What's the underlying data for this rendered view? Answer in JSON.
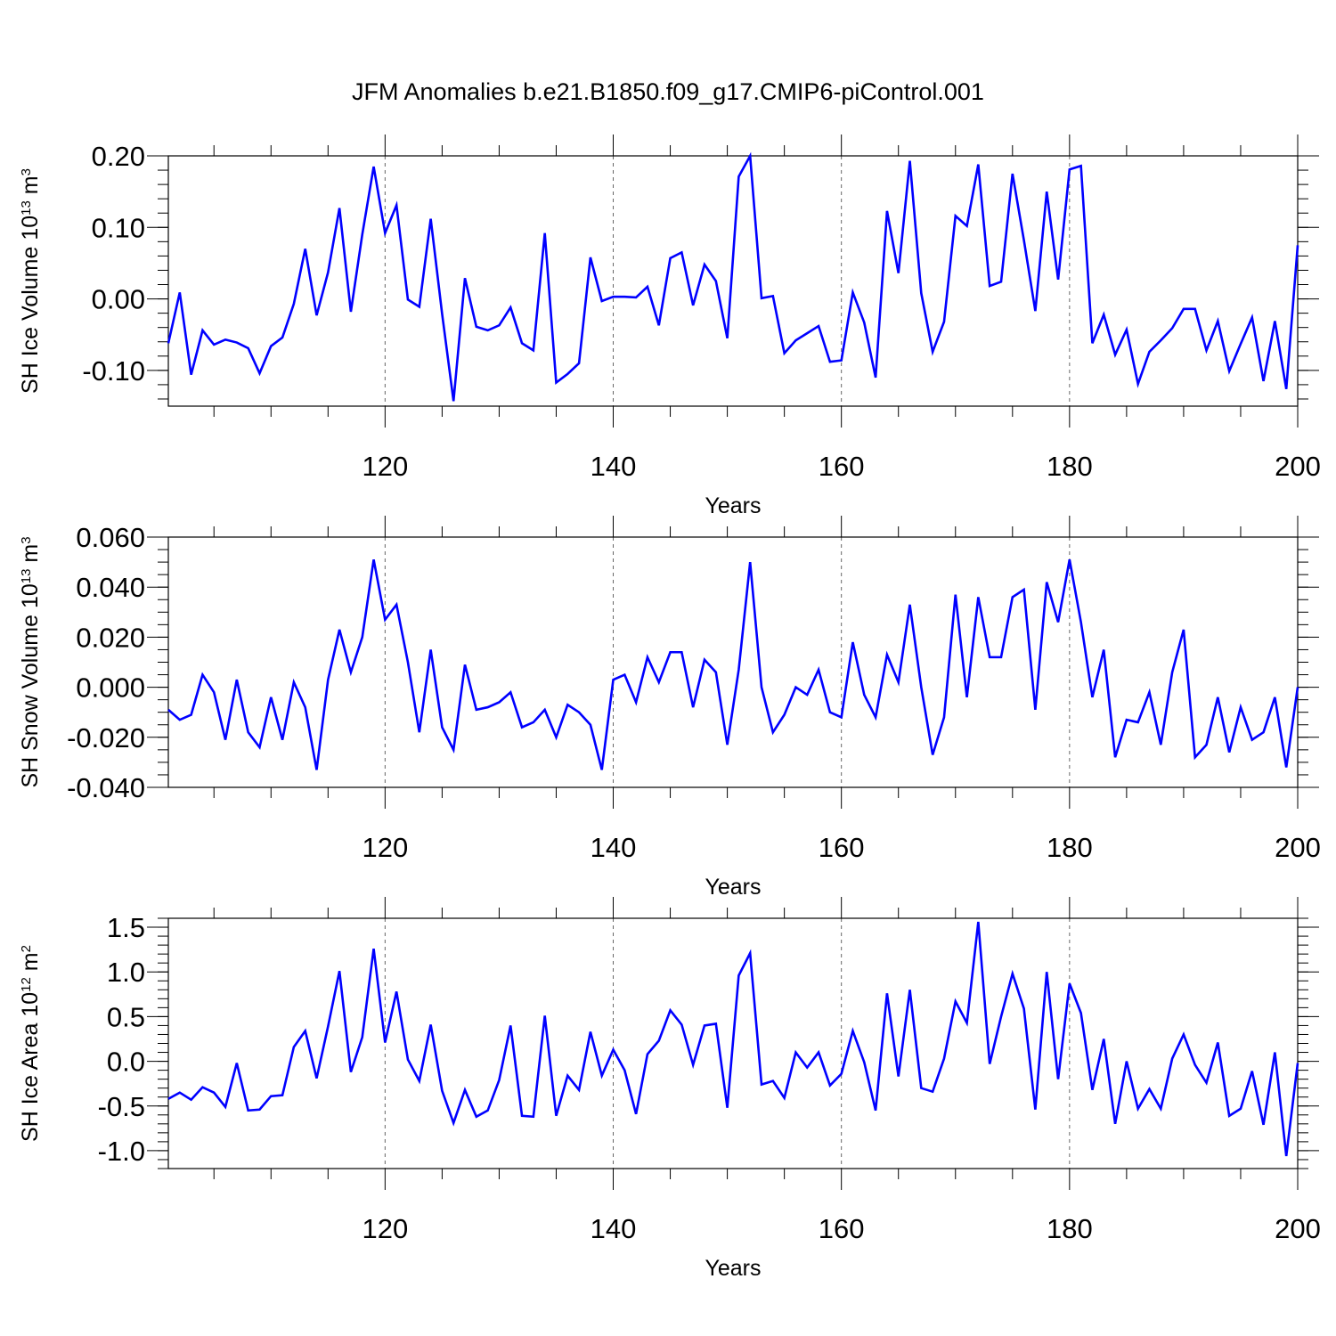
{
  "chart_data": [
    {
      "type": "line",
      "title": "JFM Anomalies b.e21.B1850.f09_g17.CMIP6-piControl.001",
      "ylabel": {
        "base": "SH Ice Volume 10",
        "exp": "13",
        "unit": " m",
        "unit_exp": "3"
      },
      "xlabel": "Years",
      "xlim": [
        101,
        200
      ],
      "ylim": [
        -0.15,
        0.2
      ],
      "xticks": [
        120,
        140,
        160,
        180,
        200
      ],
      "xtick_labels": [
        "120",
        "140",
        "160",
        "180",
        "200"
      ],
      "yticks": [
        0.2,
        0.1,
        0.0,
        -0.1
      ],
      "ytick_labels": [
        "0.20",
        "0.10",
        "0.00",
        "-0.10"
      ],
      "ymin_step": 0.02,
      "color": "#0000ff",
      "x": [
        101,
        102,
        103,
        104,
        105,
        106,
        107,
        108,
        109,
        110,
        111,
        112,
        113,
        114,
        115,
        116,
        117,
        118,
        119,
        120,
        121,
        122,
        123,
        124,
        125,
        126,
        127,
        128,
        129,
        130,
        131,
        132,
        133,
        134,
        135,
        136,
        137,
        138,
        139,
        140,
        141,
        142,
        143,
        144,
        145,
        146,
        147,
        148,
        149,
        150,
        151,
        152,
        153,
        154,
        155,
        156,
        157,
        158,
        159,
        160,
        161,
        162,
        163,
        164,
        165,
        166,
        167,
        168,
        169,
        170,
        171,
        172,
        173,
        174,
        175,
        176,
        177,
        178,
        179,
        180,
        181,
        182,
        183,
        184,
        185,
        186,
        187,
        188,
        189,
        190,
        191,
        192,
        193,
        194,
        195,
        196,
        197,
        198,
        199,
        200
      ],
      "values": [
        -0.062,
        0.009,
        -0.106,
        -0.044,
        -0.064,
        -0.057,
        -0.061,
        -0.069,
        -0.104,
        -0.066,
        -0.054,
        -0.007,
        0.07,
        -0.023,
        0.037,
        0.127,
        -0.018,
        0.09,
        0.185,
        0.092,
        0.131,
        -0.001,
        -0.011,
        0.112,
        -0.021,
        -0.143,
        0.029,
        -0.039,
        -0.044,
        -0.037,
        -0.012,
        -0.062,
        -0.072,
        0.092,
        -0.117,
        -0.105,
        -0.09,
        0.058,
        -0.003,
        0.003,
        0.003,
        0.002,
        0.017,
        -0.037,
        0.057,
        0.065,
        -0.009,
        0.048,
        0.025,
        -0.055,
        0.171,
        0.2,
        0.001,
        0.004,
        -0.076,
        -0.058,
        -0.048,
        -0.038,
        -0.088,
        -0.086,
        0.009,
        -0.033,
        -0.11,
        0.123,
        0.036,
        0.193,
        0.008,
        -0.074,
        -0.032,
        0.116,
        0.102,
        0.188,
        0.018,
        0.024,
        0.175,
        0.082,
        -0.017,
        0.15,
        0.027,
        0.181,
        0.186,
        -0.062,
        -0.022,
        -0.078,
        -0.043,
        -0.119,
        -0.074,
        -0.058,
        -0.041,
        -0.014,
        -0.014,
        -0.072,
        -0.031,
        -0.101,
        -0.063,
        -0.026,
        -0.115,
        -0.031,
        -0.126,
        0.075
      ]
    },
    {
      "type": "line",
      "ylabel": {
        "base": "SH Snow Volume 10",
        "exp": "13",
        "unit": " m",
        "unit_exp": "3"
      },
      "xlabel": "Years",
      "xlim": [
        101,
        200
      ],
      "ylim": [
        -0.04,
        0.06
      ],
      "xticks": [
        120,
        140,
        160,
        180,
        200
      ],
      "xtick_labels": [
        "120",
        "140",
        "160",
        "180",
        "200"
      ],
      "yticks": [
        0.06,
        0.04,
        0.02,
        0.0,
        -0.02,
        -0.04
      ],
      "ytick_labels": [
        "0.060",
        "0.040",
        "0.020",
        "0.000",
        "-0.020",
        "-0.040"
      ],
      "ymin_step": 0.005,
      "color": "#0000ff",
      "x": [
        101,
        102,
        103,
        104,
        105,
        106,
        107,
        108,
        109,
        110,
        111,
        112,
        113,
        114,
        115,
        116,
        117,
        118,
        119,
        120,
        121,
        122,
        123,
        124,
        125,
        126,
        127,
        128,
        129,
        130,
        131,
        132,
        133,
        134,
        135,
        136,
        137,
        138,
        139,
        140,
        141,
        142,
        143,
        144,
        145,
        146,
        147,
        148,
        149,
        150,
        151,
        152,
        153,
        154,
        155,
        156,
        157,
        158,
        159,
        160,
        161,
        162,
        163,
        164,
        165,
        166,
        167,
        168,
        169,
        170,
        171,
        172,
        173,
        174,
        175,
        176,
        177,
        178,
        179,
        180,
        181,
        182,
        183,
        184,
        185,
        186,
        187,
        188,
        189,
        190,
        191,
        192,
        193,
        194,
        195,
        196,
        197,
        198,
        199,
        200
      ],
      "values": [
        -0.009,
        -0.013,
        -0.011,
        0.005,
        -0.002,
        -0.021,
        0.003,
        -0.018,
        -0.024,
        -0.004,
        -0.021,
        0.002,
        -0.008,
        -0.033,
        0.003,
        0.023,
        0.006,
        0.02,
        0.051,
        0.027,
        0.033,
        0.01,
        -0.018,
        0.015,
        -0.016,
        -0.025,
        0.009,
        -0.009,
        -0.008,
        -0.006,
        -0.002,
        -0.016,
        -0.014,
        -0.009,
        -0.02,
        -0.007,
        -0.01,
        -0.015,
        -0.033,
        0.003,
        0.005,
        -0.006,
        0.012,
        0.002,
        0.014,
        0.014,
        -0.008,
        0.011,
        0.006,
        -0.023,
        0.007,
        0.05,
        0.0,
        -0.018,
        -0.011,
        0.0,
        -0.003,
        0.007,
        -0.01,
        -0.012,
        0.018,
        -0.003,
        -0.012,
        0.013,
        0.002,
        0.033,
        0.0,
        -0.027,
        -0.012,
        0.037,
        -0.004,
        0.036,
        0.012,
        0.012,
        0.036,
        0.039,
        -0.009,
        0.042,
        0.026,
        0.051,
        0.026,
        -0.004,
        0.015,
        -0.028,
        -0.013,
        -0.014,
        -0.002,
        -0.023,
        0.006,
        0.023,
        -0.028,
        -0.023,
        -0.004,
        -0.026,
        -0.008,
        -0.021,
        -0.018,
        -0.004,
        -0.032,
        0.0
      ]
    },
    {
      "type": "line",
      "ylabel": {
        "base": "SH Ice Area 10",
        "exp": "12",
        "unit": " m",
        "unit_exp": "2"
      },
      "xlabel": "Years",
      "xlim": [
        101,
        200
      ],
      "ylim": [
        -1.2,
        1.6
      ],
      "xticks": [
        120,
        140,
        160,
        180,
        200
      ],
      "xtick_labels": [
        "120",
        "140",
        "160",
        "180",
        "200"
      ],
      "yticks": [
        1.5,
        1.0,
        0.5,
        0.0,
        -0.5,
        -1.0
      ],
      "ytick_labels": [
        "1.5",
        "1.0",
        "0.5",
        "0.0",
        "-0.5",
        "-1.0"
      ],
      "ymin_step": 0.1,
      "color": "#0000ff",
      "x": [
        101,
        102,
        103,
        104,
        105,
        106,
        107,
        108,
        109,
        110,
        111,
        112,
        113,
        114,
        115,
        116,
        117,
        118,
        119,
        120,
        121,
        122,
        123,
        124,
        125,
        126,
        127,
        128,
        129,
        130,
        131,
        132,
        133,
        134,
        135,
        136,
        137,
        138,
        139,
        140,
        141,
        142,
        143,
        144,
        145,
        146,
        147,
        148,
        149,
        150,
        151,
        152,
        153,
        154,
        155,
        156,
        157,
        158,
        159,
        160,
        161,
        162,
        163,
        164,
        165,
        166,
        167,
        168,
        169,
        170,
        171,
        172,
        173,
        174,
        175,
        176,
        177,
        178,
        179,
        180,
        181,
        182,
        183,
        184,
        185,
        186,
        187,
        188,
        189,
        190,
        191,
        192,
        193,
        194,
        195,
        196,
        197,
        198,
        199,
        200
      ],
      "values": [
        -0.42,
        -0.35,
        -0.43,
        -0.29,
        -0.35,
        -0.51,
        -0.02,
        -0.55,
        -0.54,
        -0.39,
        -0.38,
        0.16,
        0.34,
        -0.19,
        0.39,
        1.01,
        -0.12,
        0.27,
        1.26,
        0.21,
        0.78,
        0.02,
        -0.22,
        0.41,
        -0.33,
        -0.69,
        -0.32,
        -0.62,
        -0.55,
        -0.21,
        0.4,
        -0.61,
        -0.62,
        0.51,
        -0.61,
        -0.16,
        -0.32,
        0.33,
        -0.16,
        0.13,
        -0.1,
        -0.59,
        0.08,
        0.23,
        0.57,
        0.41,
        -0.04,
        0.4,
        0.42,
        -0.52,
        0.96,
        1.21,
        -0.26,
        -0.22,
        -0.41,
        0.1,
        -0.07,
        0.1,
        -0.27,
        -0.14,
        0.34,
        -0.01,
        -0.55,
        0.76,
        -0.17,
        0.8,
        -0.3,
        -0.34,
        0.03,
        0.67,
        0.43,
        1.56,
        -0.03,
        0.5,
        0.98,
        0.59,
        -0.54,
        1.0,
        -0.2,
        0.87,
        0.54,
        -0.32,
        0.25,
        -0.7,
        0.0,
        -0.53,
        -0.31,
        -0.53,
        0.03,
        0.3,
        -0.04,
        -0.24,
        0.21,
        -0.61,
        -0.53,
        -0.11,
        -0.71,
        0.1,
        -1.06,
        -0.02
      ]
    }
  ]
}
